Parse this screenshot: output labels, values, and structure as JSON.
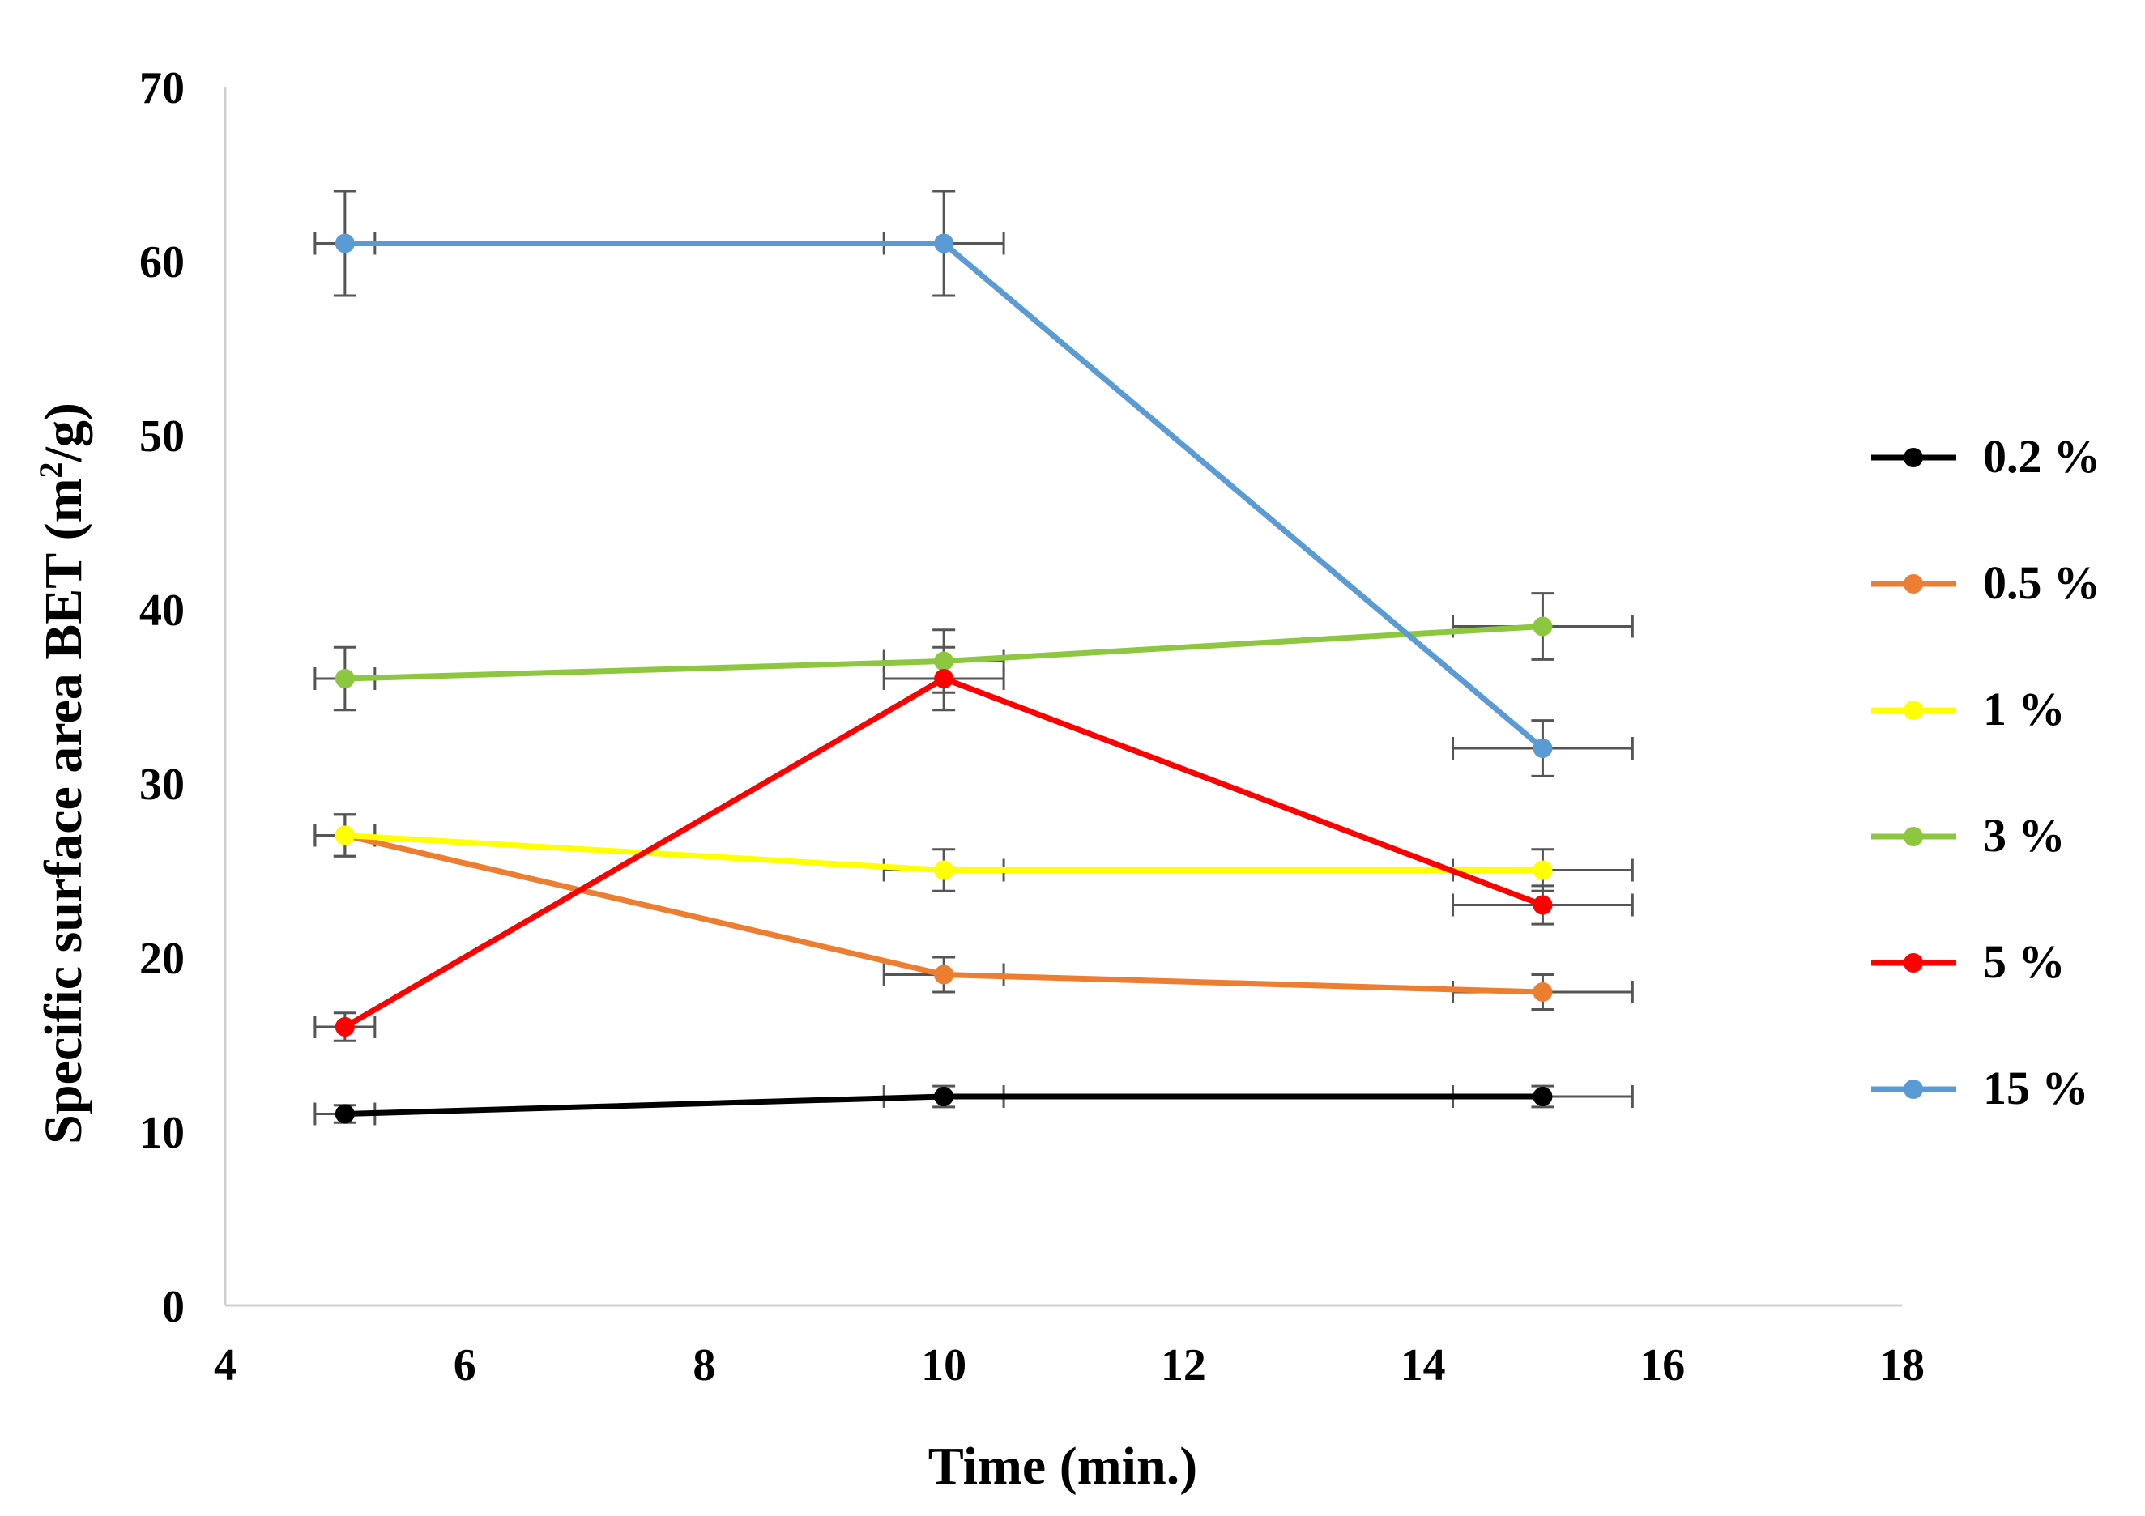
{
  "chart_data": {
    "type": "line",
    "title": "",
    "xlabel": "Time (min.)",
    "ylabel_main": "Specific surface area BET (m",
    "ylabel_sup": "2",
    "ylabel_end": "/g)",
    "xlim": [
      4,
      18
    ],
    "ylim": [
      0,
      70
    ],
    "xticks": [
      4,
      6,
      8,
      10,
      12,
      14,
      16,
      18
    ],
    "yticks": [
      0,
      10,
      20,
      30,
      40,
      50,
      60,
      70
    ],
    "grid": false,
    "legend_position": "right",
    "x": [
      5,
      10,
      15
    ],
    "series": [
      {
        "name": "0.2 %",
        "color": "#000000",
        "values": [
          11,
          12,
          12
        ],
        "yerr": [
          0.5,
          0.6,
          0.6
        ],
        "xerr": [
          0.25,
          0.5,
          0.75
        ]
      },
      {
        "name": "0.5 %",
        "color": "#ed7d31",
        "values": [
          27,
          19,
          18
        ],
        "yerr": [
          1.2,
          1.0,
          1.0
        ],
        "xerr": [
          0.25,
          0.5,
          0.75
        ]
      },
      {
        "name": "1 %",
        "color": "#ffff00",
        "values": [
          27,
          25,
          25
        ],
        "yerr": [
          1.2,
          1.2,
          1.2
        ],
        "xerr": [
          0.25,
          0.5,
          0.75
        ]
      },
      {
        "name": "3 %",
        "color": "#8dc63f",
        "values": [
          36,
          37,
          39
        ],
        "yerr": [
          1.8,
          1.8,
          1.9
        ],
        "xerr": [
          0.25,
          0.5,
          0.75
        ]
      },
      {
        "name": "5 %",
        "color": "#ff0000",
        "values": [
          16,
          36,
          23
        ],
        "yerr": [
          0.8,
          1.8,
          1.1
        ],
        "xerr": [
          0.25,
          0.5,
          0.75
        ]
      },
      {
        "name": "15 %",
        "color": "#5b9bd5",
        "values": [
          61,
          61,
          32
        ],
        "yerr": [
          3.0,
          3.0,
          1.6
        ],
        "xerr": [
          0.25,
          0.5,
          0.75
        ]
      }
    ]
  }
}
